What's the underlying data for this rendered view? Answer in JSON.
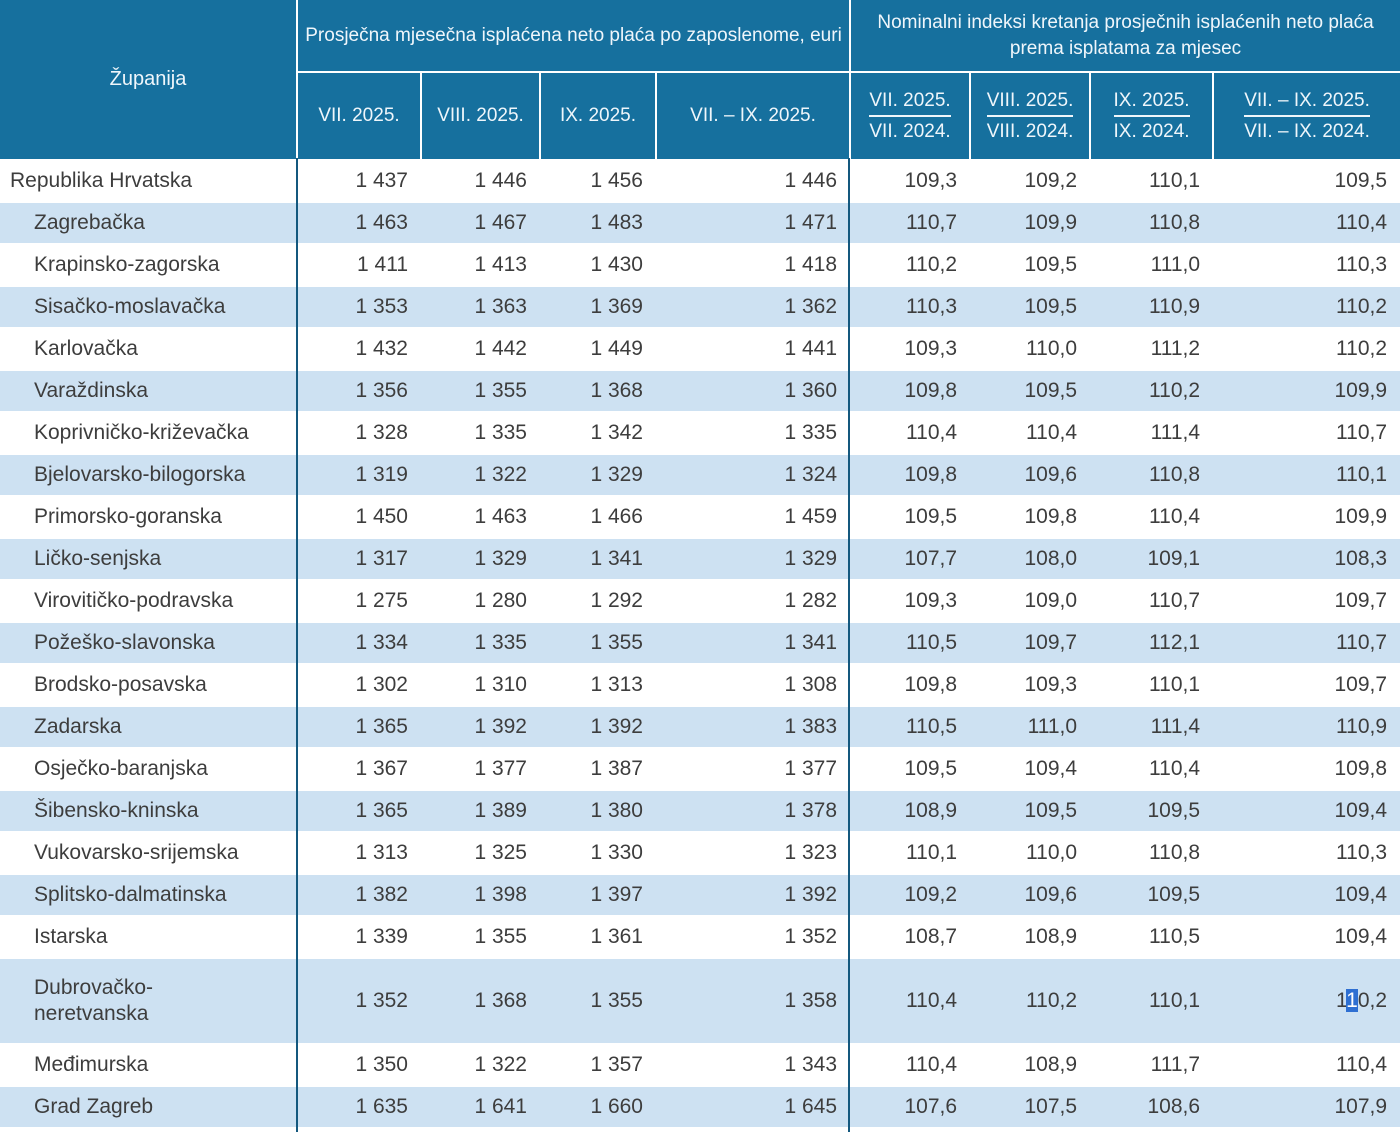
{
  "table": {
    "corner_header": "Županija",
    "group1": {
      "title": "Prosječna mjesečna isplaćena neto plaća po zaposlenome, euri",
      "columns": [
        "VII. 2025.",
        "VIII. 2025.",
        "IX. 2025.",
        "VII. – IX. 2025."
      ]
    },
    "group2": {
      "title": "Nominalni indeksi kretanja prosječnih isplaćenih neto plaća prema isplatama za mjesec",
      "columns": [
        {
          "num": "VII. 2025.",
          "den": "VII. 2024."
        },
        {
          "num": "VIII. 2025.",
          "den": "VIII. 2024."
        },
        {
          "num": "IX. 2025.",
          "den": "IX. 2024."
        },
        {
          "num": "VII. – IX. 2025.",
          "den": "VII. – IX. 2024."
        }
      ]
    },
    "rows": [
      {
        "name": "Republika Hrvatska",
        "indent": false,
        "values": [
          "1 437",
          "1 446",
          "1 456",
          "1 446",
          "109,3",
          "109,2",
          "110,1",
          "109,5"
        ]
      },
      {
        "name": "Zagrebačka",
        "indent": true,
        "values": [
          "1 463",
          "1 467",
          "1 483",
          "1 471",
          "110,7",
          "109,9",
          "110,8",
          "110,4"
        ]
      },
      {
        "name": "Krapinsko-zagorska",
        "indent": true,
        "values": [
          "1 411",
          "1 413",
          "1 430",
          "1 418",
          "110,2",
          "109,5",
          "111,0",
          "110,3"
        ]
      },
      {
        "name": "Sisačko-moslavačka",
        "indent": true,
        "values": [
          "1 353",
          "1 363",
          "1 369",
          "1 362",
          "110,3",
          "109,5",
          "110,9",
          "110,2"
        ]
      },
      {
        "name": "Karlovačka",
        "indent": true,
        "values": [
          "1 432",
          "1 442",
          "1 449",
          "1 441",
          "109,3",
          "110,0",
          "111,2",
          "110,2"
        ]
      },
      {
        "name": "Varaždinska",
        "indent": true,
        "values": [
          "1 356",
          "1 355",
          "1 368",
          "1 360",
          "109,8",
          "109,5",
          "110,2",
          "109,9"
        ]
      },
      {
        "name": "Koprivničko-križevačka",
        "indent": true,
        "values": [
          "1 328",
          "1 335",
          "1 342",
          "1 335",
          "110,4",
          "110,4",
          "111,4",
          "110,7"
        ]
      },
      {
        "name": "Bjelovarsko-bilogorska",
        "indent": true,
        "values": [
          "1 319",
          "1 322",
          "1 329",
          "1 324",
          "109,8",
          "109,6",
          "110,8",
          "110,1"
        ]
      },
      {
        "name": "Primorsko-goranska",
        "indent": true,
        "values": [
          "1 450",
          "1 463",
          "1 466",
          "1 459",
          "109,5",
          "109,8",
          "110,4",
          "109,9"
        ]
      },
      {
        "name": "Ličko-senjska",
        "indent": true,
        "values": [
          "1 317",
          "1 329",
          "1 341",
          "1 329",
          "107,7",
          "108,0",
          "109,1",
          "108,3"
        ]
      },
      {
        "name": "Virovitičko-podravska",
        "indent": true,
        "values": [
          "1 275",
          "1 280",
          "1 292",
          "1 282",
          "109,3",
          "109,0",
          "110,7",
          "109,7"
        ]
      },
      {
        "name": "Požeško-slavonska",
        "indent": true,
        "values": [
          "1 334",
          "1 335",
          "1 355",
          "1 341",
          "110,5",
          "109,7",
          "112,1",
          "110,7"
        ]
      },
      {
        "name": "Brodsko-posavska",
        "indent": true,
        "values": [
          "1 302",
          "1 310",
          "1 313",
          "1 308",
          "109,8",
          "109,3",
          "110,1",
          "109,7"
        ]
      },
      {
        "name": "Zadarska",
        "indent": true,
        "values": [
          "1 365",
          "1 392",
          "1 392",
          "1 383",
          "110,5",
          "111,0",
          "111,4",
          "110,9"
        ]
      },
      {
        "name": "Osječko-baranjska",
        "indent": true,
        "values": [
          "1 367",
          "1 377",
          "1 387",
          "1 377",
          "109,5",
          "109,4",
          "110,4",
          "109,8"
        ]
      },
      {
        "name": "Šibensko-kninska",
        "indent": true,
        "values": [
          "1 365",
          "1 389",
          "1 380",
          "1 378",
          "108,9",
          "109,5",
          "109,5",
          "109,4"
        ]
      },
      {
        "name": "Vukovarsko-srijemska",
        "indent": true,
        "values": [
          "1 313",
          "1 325",
          "1 330",
          "1 323",
          "110,1",
          "110,0",
          "110,8",
          "110,3"
        ]
      },
      {
        "name": "Splitsko-dalmatinska",
        "indent": true,
        "values": [
          "1 382",
          "1 398",
          "1 397",
          "1 392",
          "109,2",
          "109,6",
          "109,5",
          "109,4"
        ]
      },
      {
        "name": "Istarska",
        "indent": true,
        "values": [
          "1 339",
          "1 355",
          "1 361",
          "1 352",
          "108,7",
          "108,9",
          "110,5",
          "109,4"
        ]
      },
      {
        "name": "Dubrovačko-",
        "name2": "neretvanska",
        "indent": true,
        "values": [
          "1 352",
          "1 368",
          "1 355",
          "1 358",
          "110,4",
          "110,2",
          "110,1",
          "110,2"
        ],
        "highlight": {
          "col": 7,
          "start": 1,
          "end": 2
        }
      },
      {
        "name": "Međimurska",
        "indent": true,
        "values": [
          "1 350",
          "1 322",
          "1 357",
          "1 343",
          "110,4",
          "108,9",
          "111,7",
          "110,4"
        ]
      },
      {
        "name": "Grad Zagreb",
        "indent": true,
        "values": [
          "1 635",
          "1 641",
          "1 660",
          "1 645",
          "107,6",
          "107,5",
          "108,6",
          "107,9"
        ]
      }
    ]
  },
  "colors": {
    "header_bg": "#16709E",
    "header_text": "#EFF6FB",
    "row_alt": "#CDE1F2",
    "body_text": "#3D3D3D",
    "divider_dark": "#14587E",
    "selection_bg": "#2E6FD2"
  }
}
